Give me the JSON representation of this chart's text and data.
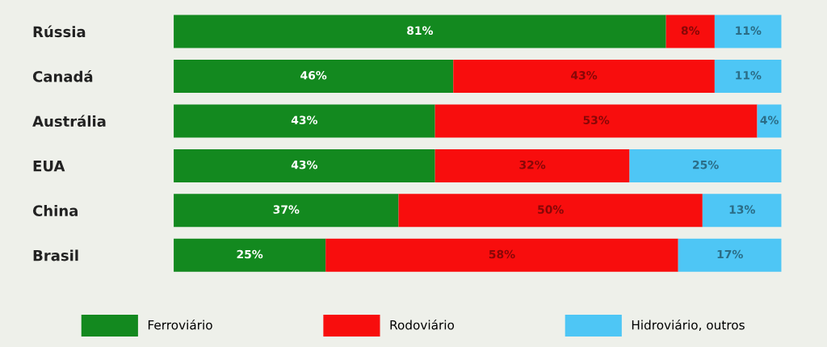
{
  "chart_data": {
    "type": "bar",
    "orientation": "horizontal",
    "stacked": true,
    "tick_labels": "y",
    "grid": false,
    "legend": "bottom",
    "categories": [
      "Rússia",
      "Canadá",
      "Austrália",
      "EUA",
      "China",
      "Brasil"
    ],
    "series": [
      {
        "name": "Ferroviário",
        "color": "#13891f",
        "values": [
          81,
          46,
          43,
          43,
          37,
          25
        ],
        "value_labels": [
          "81%",
          "46%",
          "43%",
          "43%",
          "37%",
          "25%"
        ]
      },
      {
        "name": "Rodoviário",
        "color": "#f80d0d",
        "values": [
          8,
          43,
          53,
          32,
          50,
          58
        ],
        "value_labels": [
          "8%",
          "43%",
          "53%",
          "32%",
          "50%",
          "58%"
        ]
      },
      {
        "name": "Hidroviário, outros",
        "color": "#4ec6f5",
        "values": [
          11,
          11,
          4,
          25,
          13,
          17
        ],
        "value_labels": [
          "11%",
          "11%",
          "4%",
          "25%",
          "13%",
          "17%"
        ]
      }
    ]
  }
}
